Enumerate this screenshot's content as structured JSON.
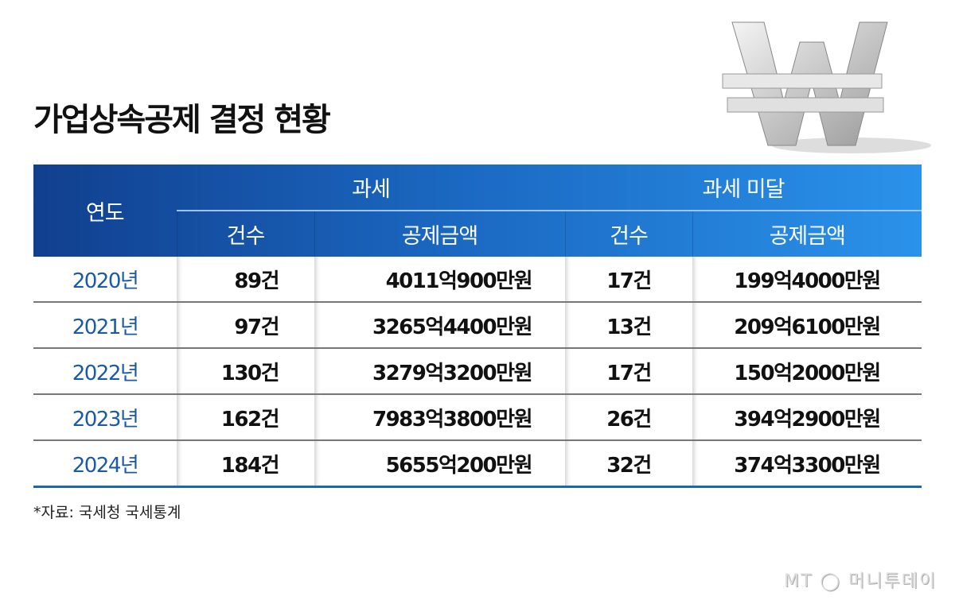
{
  "title": "가업상속공제 결정 현황",
  "chart_data": {
    "type": "table",
    "columns": {
      "year": "연도",
      "groups": [
        {
          "label": "과세",
          "sub": [
            "건수",
            "공제금액"
          ]
        },
        {
          "label": "과세 미달",
          "sub": [
            "건수",
            "공제금액"
          ]
        }
      ]
    },
    "rows": [
      {
        "year": "2020년",
        "taxed_count": "89건",
        "taxed_amount": "4011억900만원",
        "untaxed_count": "17건",
        "untaxed_amount": "199억4000만원"
      },
      {
        "year": "2021년",
        "taxed_count": "97건",
        "taxed_amount": "3265억4400만원",
        "untaxed_count": "13건",
        "untaxed_amount": "209억6100만원"
      },
      {
        "year": "2022년",
        "taxed_count": "130건",
        "taxed_amount": "3279억3200만원",
        "untaxed_count": "17건",
        "untaxed_amount": "150억2000만원"
      },
      {
        "year": "2023년",
        "taxed_count": "162건",
        "taxed_amount": "7983억3800만원",
        "untaxed_count": "26건",
        "untaxed_amount": "394억2900만원"
      },
      {
        "year": "2024년",
        "taxed_count": "184건",
        "taxed_amount": "5655억200만원",
        "untaxed_count": "32건",
        "untaxed_amount": "374억3300만원"
      }
    ]
  },
  "source": "*자료: 국세청 국세통계",
  "logo": "MT 머니투데이",
  "colors": {
    "header_dark": "#113f8e",
    "header_light": "#2a92ea",
    "year_text": "#1a5aa8"
  },
  "decoration": "won-symbol-icon"
}
